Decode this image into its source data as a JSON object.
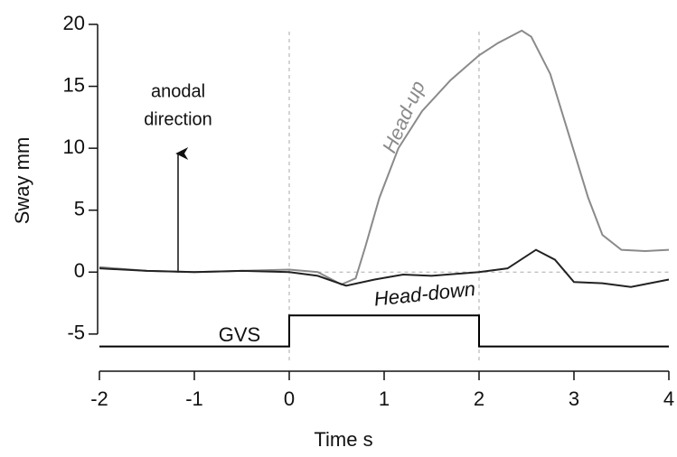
{
  "chart_data": {
    "type": "line",
    "xlabel": "Time  s",
    "ylabel": "Sway  mm",
    "xlim": [
      -2,
      4
    ],
    "xticks": [
      -2,
      -1,
      0,
      1,
      2,
      3,
      4
    ],
    "ylim": [
      -8,
      20
    ],
    "yticks": [
      -5,
      0,
      5,
      10,
      15,
      20
    ],
    "reference_lines": {
      "x": [
        0,
        2
      ],
      "y": 0
    },
    "annotations": {
      "anodal": [
        "anodal",
        "direction"
      ],
      "gvs": "GVS"
    },
    "series": [
      {
        "name": "Head-up",
        "color": "#8a8a8a",
        "x": [
          -2,
          -1.5,
          -1,
          -0.5,
          0,
          0.3,
          0.55,
          0.7,
          0.8,
          0.95,
          1.15,
          1.4,
          1.7,
          2.0,
          2.2,
          2.45,
          2.55,
          2.75,
          2.95,
          3.15,
          3.3,
          3.5,
          3.75,
          4
        ],
        "values": [
          0.4,
          0.1,
          0,
          0.1,
          0.2,
          0,
          -1,
          -0.5,
          2,
          6,
          10,
          13,
          15.5,
          17.5,
          18.5,
          19.5,
          19,
          16,
          11,
          6,
          3,
          1.8,
          1.7,
          1.8
        ]
      },
      {
        "name": "Head-down",
        "color": "#222222",
        "x": [
          -2,
          -1.5,
          -1,
          -0.5,
          0,
          0.3,
          0.6,
          0.9,
          1.2,
          1.5,
          2.0,
          2.3,
          2.6,
          2.8,
          3.0,
          3.3,
          3.6,
          4
        ],
        "values": [
          0.3,
          0.1,
          0,
          0.1,
          0,
          -0.3,
          -1.1,
          -0.6,
          -0.2,
          -0.3,
          0,
          0.3,
          1.8,
          1,
          -0.8,
          -0.9,
          -1.2,
          -0.6
        ]
      },
      {
        "name": "GVS",
        "color": "#000000",
        "x": [
          -2,
          0,
          0,
          2,
          2,
          4
        ],
        "values": [
          -6,
          -6,
          -3.5,
          -3.5,
          -6,
          -6
        ]
      }
    ]
  }
}
